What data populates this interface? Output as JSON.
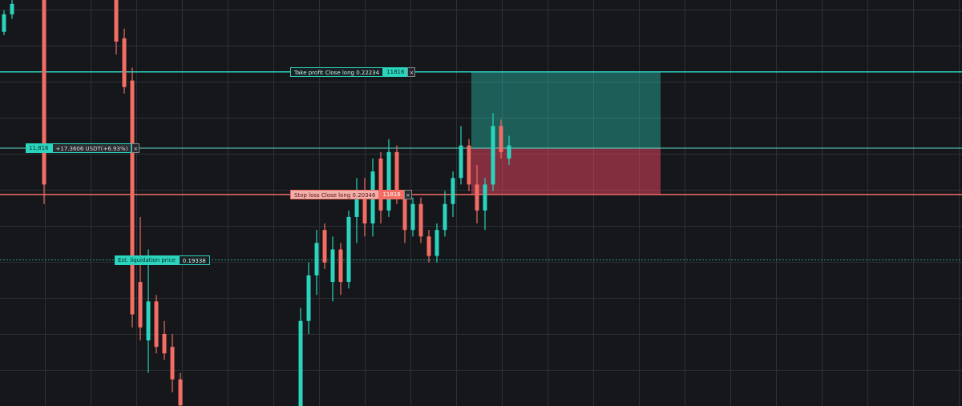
{
  "chart": {
    "type": "candlestick",
    "ylim": [
      0.1709,
      0.2334
    ],
    "up_color": "#2ad4bd",
    "down_color": "#f26d63",
    "candles": [
      [
        0.2285,
        0.2318,
        0.228,
        0.2312
      ],
      [
        0.2312,
        0.2334,
        0.2305,
        0.2328
      ],
      null,
      null,
      null,
      [
        0.2334,
        0.2334,
        0.202,
        0.205
      ],
      null,
      null,
      null,
      null,
      null,
      null,
      null,
      null,
      [
        0.2334,
        0.2334,
        0.225,
        0.227
      ],
      [
        0.2275,
        0.229,
        0.219,
        0.22
      ],
      [
        0.221,
        0.223,
        0.183,
        0.185
      ],
      [
        0.19,
        0.2,
        0.181,
        0.183
      ],
      [
        0.181,
        0.195,
        0.176,
        0.187
      ],
      [
        0.187,
        0.188,
        0.179,
        0.18
      ],
      [
        0.182,
        0.184,
        0.178,
        0.179
      ],
      [
        0.18,
        0.182,
        0.173,
        0.175
      ],
      [
        0.175,
        0.176,
        0.17,
        0.171
      ],
      null,
      null,
      null,
      null,
      null,
      null,
      null,
      null,
      null,
      null,
      null,
      null,
      null,
      null,
      [
        0.1709,
        0.186,
        0.17,
        0.184
      ],
      [
        0.184,
        0.193,
        0.182,
        0.191
      ],
      [
        0.191,
        0.198,
        0.188,
        0.196
      ],
      [
        0.198,
        0.199,
        0.192,
        0.193
      ],
      [
        0.19,
        0.197,
        0.187,
        0.195
      ],
      [
        0.195,
        0.196,
        0.188,
        0.19
      ],
      [
        0.19,
        0.201,
        0.189,
        0.2
      ],
      [
        0.2,
        0.206,
        0.196,
        0.204
      ],
      [
        0.204,
        0.206,
        0.197,
        0.199
      ],
      [
        0.199,
        0.209,
        0.197,
        0.207
      ],
      [
        0.209,
        0.21,
        0.199,
        0.201
      ],
      [
        0.201,
        0.212,
        0.2,
        0.21
      ],
      [
        0.21,
        0.211,
        0.202,
        0.203
      ],
      [
        0.203,
        0.204,
        0.196,
        0.198
      ],
      [
        0.198,
        0.203,
        0.197,
        0.202
      ],
      [
        0.202,
        0.203,
        0.196,
        0.197
      ],
      [
        0.197,
        0.198,
        0.193,
        0.194
      ],
      [
        0.194,
        0.199,
        0.193,
        0.198
      ],
      [
        0.198,
        0.204,
        0.197,
        0.202
      ],
      [
        0.202,
        0.207,
        0.2,
        0.206
      ],
      [
        0.206,
        0.214,
        0.205,
        0.211
      ],
      [
        0.211,
        0.212,
        0.204,
        0.205
      ],
      [
        0.205,
        0.208,
        0.199,
        0.201
      ],
      [
        0.201,
        0.206,
        0.198,
        0.205
      ],
      [
        0.205,
        0.216,
        0.204,
        0.214
      ],
      [
        0.214,
        0.215,
        0.209,
        0.21
      ],
      [
        0.209,
        0.2125,
        0.208,
        0.211
      ]
    ]
  },
  "orders": {
    "take_profit": {
      "label": "Take profit Close long 0.22234",
      "qty": "11816",
      "price": 0.22234
    },
    "position": {
      "qty": "11,816",
      "pnl": "+17.3606 USDT(+6.93%)",
      "price": 0.2106
    },
    "stop_loss": {
      "label": "Stop loss Close long 0.20346",
      "qty": "11816",
      "price": 0.20346
    },
    "liquidation": {
      "label": "Est. liquidation price",
      "value": "0.19338",
      "price": 0.19338
    }
  }
}
